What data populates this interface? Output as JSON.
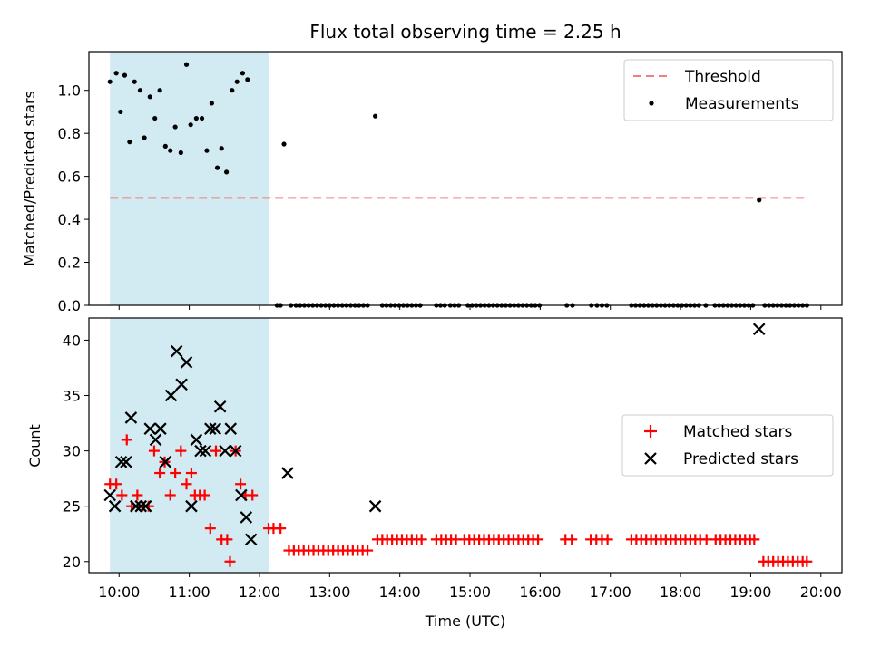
{
  "chart_data": {
    "title": "Flux total observing time = 2.25 h",
    "x_label": "Time (UTC)",
    "x_unit": "hours UTC",
    "x_range": [
      9.57,
      20.3
    ],
    "x_ticks": [
      {
        "v": 10,
        "label": "10:00"
      },
      {
        "v": 11,
        "label": "11:00"
      },
      {
        "v": 12,
        "label": "12:00"
      },
      {
        "v": 13,
        "label": "13:00"
      },
      {
        "v": 14,
        "label": "14:00"
      },
      {
        "v": 15,
        "label": "15:00"
      },
      {
        "v": 16,
        "label": "16:00"
      },
      {
        "v": 17,
        "label": "17:00"
      },
      {
        "v": 18,
        "label": "18:00"
      },
      {
        "v": 19,
        "label": "19:00"
      },
      {
        "v": 20,
        "label": "20:00"
      }
    ],
    "shaded_region": {
      "x_start": 9.87,
      "x_end": 12.13,
      "color": "#add8e6"
    },
    "top": {
      "type": "scatter",
      "ylabel": "Matched/Predicted stars",
      "ylim": [
        0,
        1.18
      ],
      "y_ticks": [
        {
          "v": 0,
          "label": "0.0"
        },
        {
          "v": 0.2,
          "label": "0.2"
        },
        {
          "v": 0.4,
          "label": "0.4"
        },
        {
          "v": 0.6,
          "label": "0.6"
        },
        {
          "v": 0.8,
          "label": "0.8"
        },
        {
          "v": 1.0,
          "label": "1.0"
        }
      ],
      "threshold": {
        "y": 0.5,
        "x_start": 9.87,
        "x_end": 19.8,
        "color": "#f08080"
      },
      "legend": {
        "position": "top-right",
        "threshold_label": "Threshold",
        "measurements_label": "Measurements"
      },
      "measurements": [
        [
          9.87,
          1.04
        ],
        [
          9.96,
          1.08
        ],
        [
          10.02,
          0.9
        ],
        [
          10.08,
          1.07
        ],
        [
          10.15,
          0.76
        ],
        [
          10.22,
          1.04
        ],
        [
          10.3,
          1.0
        ],
        [
          10.36,
          0.78
        ],
        [
          10.44,
          0.97
        ],
        [
          10.51,
          0.87
        ],
        [
          10.58,
          1.0
        ],
        [
          10.66,
          0.74
        ],
        [
          10.73,
          0.72
        ],
        [
          10.8,
          0.83
        ],
        [
          10.88,
          0.71
        ],
        [
          10.96,
          1.12
        ],
        [
          11.02,
          0.84
        ],
        [
          11.1,
          0.87
        ],
        [
          11.18,
          0.87
        ],
        [
          11.25,
          0.72
        ],
        [
          11.32,
          0.94
        ],
        [
          11.4,
          0.64
        ],
        [
          11.46,
          0.73
        ],
        [
          11.53,
          0.62
        ],
        [
          11.61,
          1.0
        ],
        [
          11.68,
          1.04
        ],
        [
          11.76,
          1.08
        ],
        [
          11.83,
          1.05
        ],
        [
          12.35,
          0.75
        ],
        [
          13.65,
          0.88
        ],
        [
          19.12,
          0.49
        ],
        [
          12.25,
          0
        ],
        [
          12.3,
          0
        ],
        [
          12.45,
          0
        ],
        [
          12.52,
          0
        ],
        [
          12.58,
          0
        ],
        [
          12.64,
          0
        ],
        [
          12.7,
          0
        ],
        [
          12.76,
          0
        ],
        [
          12.82,
          0
        ],
        [
          12.88,
          0
        ],
        [
          12.94,
          0
        ],
        [
          13.0,
          0
        ],
        [
          13.06,
          0
        ],
        [
          13.12,
          0
        ],
        [
          13.18,
          0
        ],
        [
          13.24,
          0
        ],
        [
          13.3,
          0
        ],
        [
          13.36,
          0
        ],
        [
          13.42,
          0
        ],
        [
          13.48,
          0
        ],
        [
          13.54,
          0
        ],
        [
          13.75,
          0
        ],
        [
          13.81,
          0
        ],
        [
          13.87,
          0
        ],
        [
          13.93,
          0
        ],
        [
          13.99,
          0
        ],
        [
          14.05,
          0
        ],
        [
          14.11,
          0
        ],
        [
          14.17,
          0
        ],
        [
          14.23,
          0
        ],
        [
          14.29,
          0
        ],
        [
          14.52,
          0
        ],
        [
          14.58,
          0
        ],
        [
          14.64,
          0
        ],
        [
          14.72,
          0
        ],
        [
          14.78,
          0
        ],
        [
          14.84,
          0
        ],
        [
          14.97,
          0
        ],
        [
          15.03,
          0
        ],
        [
          15.09,
          0
        ],
        [
          15.15,
          0
        ],
        [
          15.21,
          0
        ],
        [
          15.27,
          0
        ],
        [
          15.33,
          0
        ],
        [
          15.39,
          0
        ],
        [
          15.45,
          0
        ],
        [
          15.51,
          0
        ],
        [
          15.57,
          0
        ],
        [
          15.63,
          0
        ],
        [
          15.69,
          0
        ],
        [
          15.75,
          0
        ],
        [
          15.81,
          0
        ],
        [
          15.87,
          0
        ],
        [
          15.93,
          0
        ],
        [
          15.99,
          0
        ],
        [
          16.38,
          0
        ],
        [
          16.46,
          0
        ],
        [
          16.73,
          0
        ],
        [
          16.81,
          0
        ],
        [
          16.88,
          0
        ],
        [
          16.95,
          0
        ],
        [
          17.3,
          0
        ],
        [
          17.36,
          0
        ],
        [
          17.42,
          0
        ],
        [
          17.48,
          0
        ],
        [
          17.54,
          0
        ],
        [
          17.6,
          0
        ],
        [
          17.66,
          0
        ],
        [
          17.72,
          0
        ],
        [
          17.78,
          0
        ],
        [
          17.84,
          0
        ],
        [
          17.9,
          0
        ],
        [
          17.96,
          0
        ],
        [
          18.02,
          0
        ],
        [
          18.08,
          0
        ],
        [
          18.14,
          0
        ],
        [
          18.2,
          0
        ],
        [
          18.26,
          0
        ],
        [
          18.36,
          0
        ],
        [
          18.49,
          0
        ],
        [
          18.55,
          0
        ],
        [
          18.61,
          0
        ],
        [
          18.67,
          0
        ],
        [
          18.73,
          0
        ],
        [
          18.79,
          0
        ],
        [
          18.85,
          0
        ],
        [
          18.91,
          0
        ],
        [
          18.97,
          0
        ],
        [
          19.03,
          0
        ],
        [
          19.2,
          0
        ],
        [
          19.26,
          0
        ],
        [
          19.32,
          0
        ],
        [
          19.38,
          0
        ],
        [
          19.44,
          0
        ],
        [
          19.5,
          0
        ],
        [
          19.56,
          0
        ],
        [
          19.62,
          0
        ],
        [
          19.68,
          0
        ],
        [
          19.74,
          0
        ],
        [
          19.8,
          0
        ]
      ]
    },
    "bottom": {
      "type": "scatter",
      "ylabel": "Count",
      "ylim": [
        19,
        42
      ],
      "y_ticks": [
        {
          "v": 20,
          "label": "20"
        },
        {
          "v": 25,
          "label": "25"
        },
        {
          "v": 30,
          "label": "30"
        },
        {
          "v": 35,
          "label": "35"
        },
        {
          "v": 40,
          "label": "40"
        }
      ],
      "legend": {
        "position": "center-right",
        "matched_label": "Matched stars",
        "predicted_label": "Predicted stars"
      },
      "matched_stars": [
        [
          9.87,
          27
        ],
        [
          9.96,
          27
        ],
        [
          10.04,
          26
        ],
        [
          10.11,
          31
        ],
        [
          10.18,
          25
        ],
        [
          10.26,
          26
        ],
        [
          10.33,
          25
        ],
        [
          10.42,
          25
        ],
        [
          10.5,
          30
        ],
        [
          10.58,
          28
        ],
        [
          10.65,
          29
        ],
        [
          10.73,
          26
        ],
        [
          10.8,
          28
        ],
        [
          10.88,
          30
        ],
        [
          10.96,
          27
        ],
        [
          11.03,
          28
        ],
        [
          11.08,
          26
        ],
        [
          11.15,
          26
        ],
        [
          11.22,
          26
        ],
        [
          11.3,
          23
        ],
        [
          11.38,
          30
        ],
        [
          11.46,
          22
        ],
        [
          11.54,
          22
        ],
        [
          11.58,
          20
        ],
        [
          11.66,
          30
        ],
        [
          11.73,
          27
        ],
        [
          11.8,
          26
        ],
        [
          11.9,
          26
        ],
        [
          12.13,
          23
        ],
        [
          12.2,
          23
        ],
        [
          12.3,
          23
        ],
        [
          12.42,
          21
        ],
        [
          12.49,
          21
        ],
        [
          12.56,
          21
        ],
        [
          12.63,
          21
        ],
        [
          12.7,
          21
        ],
        [
          12.77,
          21
        ],
        [
          12.84,
          21
        ],
        [
          12.91,
          21
        ],
        [
          12.98,
          21
        ],
        [
          13.05,
          21
        ],
        [
          13.12,
          21
        ],
        [
          13.19,
          21
        ],
        [
          13.26,
          21
        ],
        [
          13.33,
          21
        ],
        [
          13.4,
          21
        ],
        [
          13.47,
          21
        ],
        [
          13.54,
          21
        ],
        [
          13.68,
          22
        ],
        [
          13.75,
          22
        ],
        [
          13.82,
          22
        ],
        [
          13.89,
          22
        ],
        [
          13.96,
          22
        ],
        [
          14.03,
          22
        ],
        [
          14.1,
          22
        ],
        [
          14.17,
          22
        ],
        [
          14.24,
          22
        ],
        [
          14.31,
          22
        ],
        [
          14.52,
          22
        ],
        [
          14.59,
          22
        ],
        [
          14.66,
          22
        ],
        [
          14.73,
          22
        ],
        [
          14.8,
          22
        ],
        [
          14.92,
          22
        ],
        [
          14.99,
          22
        ],
        [
          15.06,
          22
        ],
        [
          15.13,
          22
        ],
        [
          15.2,
          22
        ],
        [
          15.27,
          22
        ],
        [
          15.34,
          22
        ],
        [
          15.41,
          22
        ],
        [
          15.48,
          22
        ],
        [
          15.55,
          22
        ],
        [
          15.62,
          22
        ],
        [
          15.69,
          22
        ],
        [
          15.76,
          22
        ],
        [
          15.83,
          22
        ],
        [
          15.9,
          22
        ],
        [
          15.97,
          22
        ],
        [
          16.36,
          22
        ],
        [
          16.45,
          22
        ],
        [
          16.72,
          22
        ],
        [
          16.8,
          22
        ],
        [
          16.88,
          22
        ],
        [
          16.96,
          22
        ],
        [
          17.3,
          22
        ],
        [
          17.37,
          22
        ],
        [
          17.44,
          22
        ],
        [
          17.51,
          22
        ],
        [
          17.58,
          22
        ],
        [
          17.65,
          22
        ],
        [
          17.72,
          22
        ],
        [
          17.79,
          22
        ],
        [
          17.86,
          22
        ],
        [
          17.93,
          22
        ],
        [
          18.0,
          22
        ],
        [
          18.07,
          22
        ],
        [
          18.14,
          22
        ],
        [
          18.21,
          22
        ],
        [
          18.28,
          22
        ],
        [
          18.37,
          22
        ],
        [
          18.5,
          22
        ],
        [
          18.57,
          22
        ],
        [
          18.64,
          22
        ],
        [
          18.71,
          22
        ],
        [
          18.78,
          22
        ],
        [
          18.85,
          22
        ],
        [
          18.92,
          22
        ],
        [
          18.99,
          22
        ],
        [
          19.05,
          22
        ],
        [
          19.18,
          20
        ],
        [
          19.25,
          20
        ],
        [
          19.32,
          20
        ],
        [
          19.39,
          20
        ],
        [
          19.46,
          20
        ],
        [
          19.53,
          20
        ],
        [
          19.6,
          20
        ],
        [
          19.67,
          20
        ],
        [
          19.74,
          20
        ],
        [
          19.8,
          20
        ]
      ],
      "predicted_stars": [
        [
          9.87,
          26
        ],
        [
          9.94,
          25
        ],
        [
          10.03,
          29
        ],
        [
          10.1,
          29
        ],
        [
          10.17,
          33
        ],
        [
          10.24,
          25
        ],
        [
          10.31,
          25
        ],
        [
          10.38,
          25
        ],
        [
          10.44,
          32
        ],
        [
          10.52,
          31
        ],
        [
          10.59,
          32
        ],
        [
          10.66,
          29
        ],
        [
          10.74,
          35
        ],
        [
          10.82,
          39
        ],
        [
          10.89,
          36
        ],
        [
          10.96,
          38
        ],
        [
          11.03,
          25
        ],
        [
          11.1,
          31
        ],
        [
          11.16,
          30
        ],
        [
          11.23,
          30
        ],
        [
          11.3,
          32
        ],
        [
          11.37,
          32
        ],
        [
          11.44,
          34
        ],
        [
          11.51,
          30
        ],
        [
          11.59,
          32
        ],
        [
          11.66,
          30
        ],
        [
          11.74,
          26
        ],
        [
          11.81,
          24
        ],
        [
          11.88,
          22
        ],
        [
          12.4,
          28
        ],
        [
          13.65,
          25
        ],
        [
          19.12,
          41
        ]
      ]
    }
  }
}
